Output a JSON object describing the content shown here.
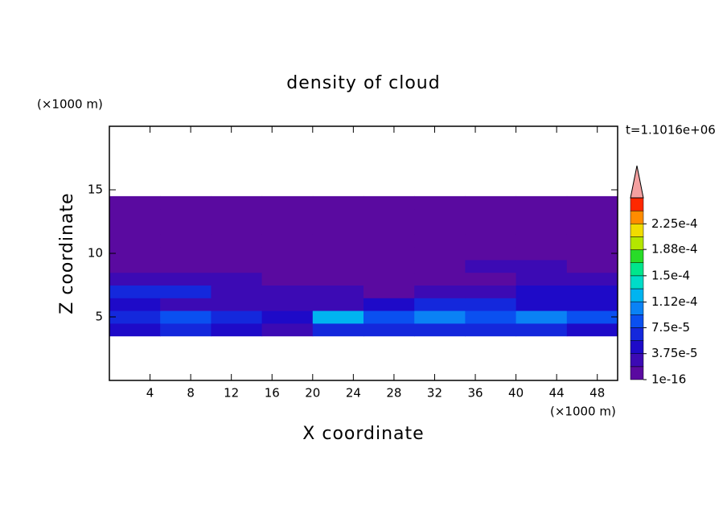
{
  "chart_data": {
    "type": "contour",
    "title": "density of cloud",
    "x_label": "X coordinate",
    "y_label": "Z coordinate",
    "x_unit": "(×1000 m)",
    "y_unit": "(×1000 m)",
    "time_label": "t=1.1016e+06",
    "xlim": [
      0,
      50
    ],
    "xticks": [
      4,
      8,
      12,
      16,
      20,
      24,
      28,
      32,
      36,
      40,
      44,
      48
    ],
    "ylim": [
      0,
      20
    ],
    "yticks": [
      5,
      10,
      15
    ],
    "x": [
      2.5,
      7.5,
      12.5,
      17.5,
      22.5,
      27.5,
      32.5,
      37.5,
      42.5,
      47.5
    ],
    "z": [
      4,
      5,
      6,
      7,
      8,
      9,
      10,
      11,
      12,
      13,
      14
    ],
    "values": [
      [
        5e-05,
        6e-05,
        4e-05,
        3e-05,
        6e-05,
        7e-05,
        6e-05,
        6e-05,
        7e-05,
        5e-05
      ],
      [
        7e-05,
        9e-05,
        6e-05,
        5e-05,
        0.00012,
        9e-05,
        0.0001,
        9e-05,
        0.00011,
        8e-05
      ],
      [
        5e-05,
        3e-05,
        2e-05,
        2e-05,
        3e-05,
        5e-05,
        6e-05,
        6e-05,
        5e-05,
        5e-05
      ],
      [
        7e-05,
        6e-05,
        3e-05,
        2e-05,
        2e-05,
        1.5e-05,
        2.5e-05,
        3e-05,
        5e-05,
        5e-05
      ],
      [
        3e-05,
        2e-05,
        2e-05,
        1.5e-05,
        1.5e-05,
        1e-05,
        1e-05,
        1.5e-05,
        2.5e-05,
        2e-05
      ],
      [
        1e-05,
        1e-05,
        5e-06,
        5e-06,
        1e-05,
        5e-06,
        5e-06,
        2e-05,
        2.5e-05,
        1e-05
      ],
      [
        5e-06,
        5e-06,
        5e-06,
        5e-06,
        5e-06,
        5e-06,
        5e-06,
        5e-06,
        5e-06,
        5e-06
      ],
      [
        5e-06,
        5e-06,
        5e-06,
        5e-06,
        5e-06,
        5e-06,
        5e-06,
        5e-06,
        5e-06,
        5e-06
      ],
      [
        5e-06,
        5e-06,
        5e-06,
        5e-06,
        5e-06,
        5e-06,
        5e-06,
        5e-06,
        5e-06,
        5e-06
      ],
      [
        5e-06,
        5e-06,
        5e-06,
        5e-06,
        5e-06,
        5e-06,
        5e-06,
        5e-06,
        5e-06,
        5e-06
      ],
      [
        5e-06,
        5e-06,
        5e-06,
        5e-06,
        5e-06,
        5e-06,
        5e-06,
        5e-06,
        5e-06,
        5e-06
      ]
    ],
    "clim": [
      1e-16,
      0.0002625
    ],
    "level_step": 1.875e-05,
    "colors": [
      "#5a0aa0",
      "#3c0ab4",
      "#1e0ac8",
      "#1428dc",
      "#0a50f0",
      "#0a82f5",
      "#00b4f0",
      "#00dcc8",
      "#00e68c",
      "#28dc28",
      "#b4e600",
      "#f0dc00",
      "#ff8c00",
      "#ff2800"
    ],
    "extend_color": "#f4a0a0",
    "cticks": [
      {
        "value": 1e-16,
        "label": "1e-16"
      },
      {
        "value": 3.75e-05,
        "label": "3.75e-5"
      },
      {
        "value": 7.5e-05,
        "label": "7.5e-5"
      },
      {
        "value": 0.000112,
        "label": "1.12e-4"
      },
      {
        "value": 0.00015,
        "label": "1.5e-4"
      },
      {
        "value": 0.000188,
        "label": "1.88e-4"
      },
      {
        "value": 0.000225,
        "label": "2.25e-4"
      }
    ]
  }
}
